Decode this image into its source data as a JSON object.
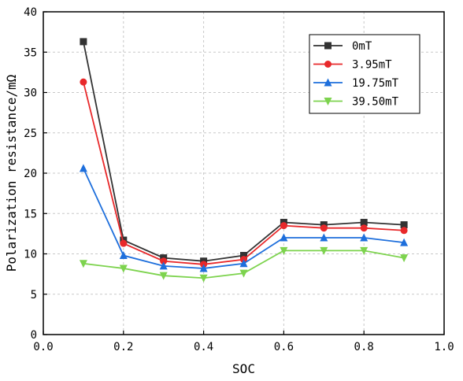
{
  "chart_data": {
    "type": "line",
    "title": "",
    "xlabel": "SOC",
    "ylabel": "Polarization resistance/mΩ",
    "xlim": [
      0.0,
      1.0
    ],
    "ylim": [
      0,
      40
    ],
    "xticks": [
      0.0,
      0.2,
      0.4,
      0.6,
      0.8,
      1.0
    ],
    "xtick_labels": [
      "0.0",
      "0.2",
      "0.4",
      "0.6",
      "0.8",
      "1.0"
    ],
    "yticks": [
      0,
      5,
      10,
      15,
      20,
      25,
      30,
      35,
      40
    ],
    "ytick_labels": [
      "0",
      "5",
      "10",
      "15",
      "20",
      "25",
      "30",
      "35",
      "40"
    ],
    "grid": true,
    "legend_position": "top-right",
    "x": [
      0.1,
      0.2,
      0.3,
      0.4,
      0.5,
      0.6,
      0.7,
      0.8,
      0.9
    ],
    "series": [
      {
        "name": "0mT",
        "values": [
          36.3,
          11.7,
          9.5,
          9.1,
          9.8,
          13.9,
          13.6,
          13.9,
          13.6
        ],
        "color": "#333333",
        "marker": "square"
      },
      {
        "name": "3.95mT",
        "values": [
          31.3,
          11.3,
          9.1,
          8.7,
          9.3,
          13.5,
          13.2,
          13.2,
          12.9
        ],
        "color": "#e8282a",
        "marker": "circle"
      },
      {
        "name": "19.75mT",
        "values": [
          20.6,
          9.8,
          8.5,
          8.2,
          8.8,
          12.0,
          12.0,
          12.0,
          11.4
        ],
        "color": "#1e6fdc",
        "marker": "triangle-up"
      },
      {
        "name": "39.50mT",
        "values": [
          8.8,
          8.2,
          7.3,
          7.0,
          7.6,
          10.4,
          10.4,
          10.4,
          9.5
        ],
        "color": "#7dd34e",
        "marker": "triangle-down"
      }
    ]
  }
}
